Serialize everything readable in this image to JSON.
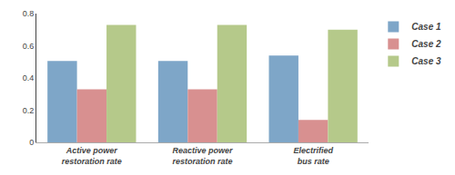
{
  "chart_data": {
    "type": "bar",
    "categories": [
      "Active power\nrestoration rate",
      "Reactive power\nrestoration rate",
      "Electrified\nbus rate"
    ],
    "series": [
      {
        "name": "Case 1",
        "color": "#7ea6c8",
        "values": [
          0.505,
          0.505,
          0.54
        ]
      },
      {
        "name": "Case 2",
        "color": "#d89090",
        "values": [
          0.33,
          0.33,
          0.14
        ]
      },
      {
        "name": "Case 3",
        "color": "#b5c98a",
        "values": [
          0.73,
          0.73,
          0.7
        ]
      }
    ],
    "ylim": [
      0,
      0.8
    ],
    "yticks": [
      0,
      0.2,
      0.4,
      0.6,
      0.8
    ],
    "grid": false,
    "legend": "right"
  }
}
